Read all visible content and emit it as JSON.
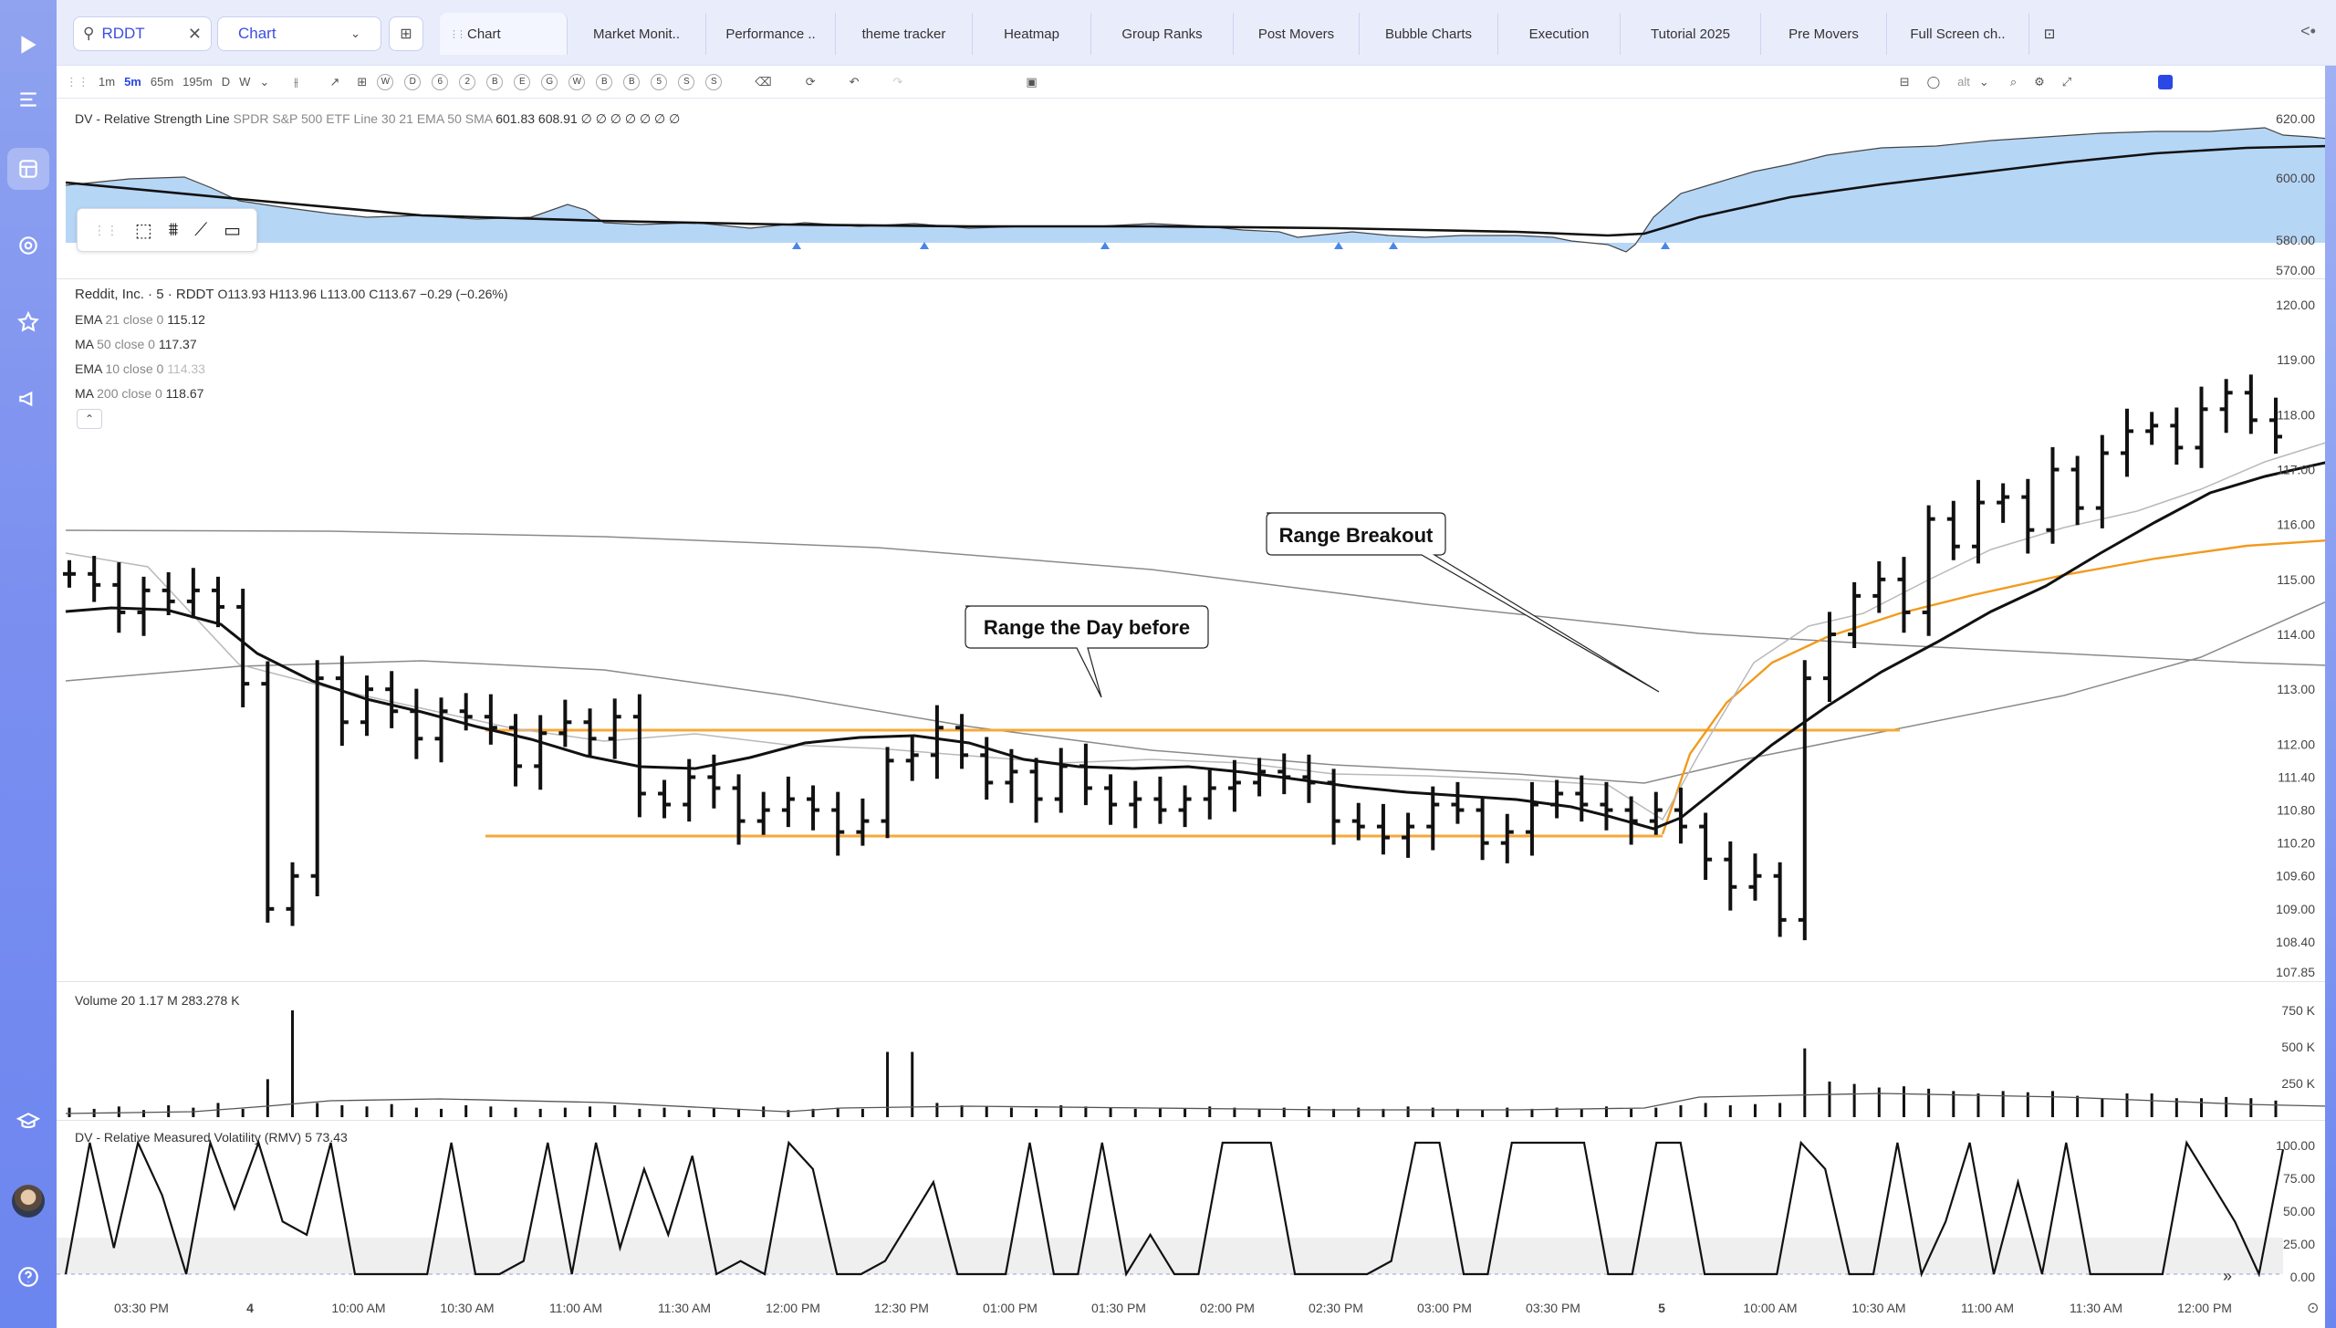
{
  "topbar": {
    "symbol": "RDDT",
    "chart_type": "Chart",
    "tabs": [
      "Chart",
      "Market Monit..",
      "Performance ..",
      "theme tracker",
      "Heatmap",
      "Group Ranks",
      "Post Movers",
      "Bubble Charts",
      "Execution",
      "Tutorial 2025",
      "Pre Movers",
      "Full Screen ch.."
    ]
  },
  "toolbar": {
    "timeframes": [
      "1m",
      "5m",
      "65m",
      "195m",
      "D",
      "W"
    ],
    "active_timeframe": "5m",
    "period_buttons": [
      "W",
      "D",
      "6",
      "2",
      "B",
      "E",
      "G",
      "W",
      "B",
      "B",
      "5",
      "S",
      "S"
    ],
    "alt_label": "alt"
  },
  "rs_pane": {
    "legend_name": "DV - Relative Strength Line",
    "legend_params": "SPDR S&P 500 ETF Line 30 21 EMA 50 SMA",
    "legend_values": "601.83  608.91  ∅ ∅ ∅ ∅ ∅ ∅ ∅",
    "y_ticks": [
      "620.00",
      "600.00",
      "580.00",
      "570.00"
    ]
  },
  "price_pane": {
    "title": "Reddit, Inc. · 5 · RDDT",
    "ohlc": "O113.93  H113.96  L113.00  C113.67  −0.29 (−0.26%)",
    "indicators": [
      {
        "name": "EMA",
        "params": "21 close 0",
        "value": "115.12"
      },
      {
        "name": "MA",
        "params": "50 close 0",
        "value": "117.37"
      },
      {
        "name": "EMA",
        "params": "10 close 0",
        "value": "114.33"
      },
      {
        "name": "MA",
        "params": "200 close 0",
        "value": "118.67"
      }
    ],
    "y_ticks": [
      "120.00",
      "119.00",
      "118.00",
      "117.00",
      "116.00",
      "115.00",
      "114.00",
      "113.00",
      "112.00",
      "111.40",
      "110.80",
      "110.20",
      "109.60",
      "109.00",
      "108.40",
      "107.85"
    ],
    "annotations": [
      "Range the Day before",
      "Range Breakout"
    ],
    "range_lines": [
      {
        "price": 111.95,
        "color": "#f7a83a"
      },
      {
        "price": 110.1,
        "color": "#f7a83a"
      }
    ]
  },
  "volume_pane": {
    "legend": "Volume 20  1.17 M  283.278 K",
    "y_ticks": [
      "750 K",
      "500 K",
      "250 K"
    ]
  },
  "rmv_pane": {
    "legend": "DV - Relative Measured Volatility (RMV) 5  73.43",
    "y_ticks": [
      "100.00",
      "75.00",
      "50.00",
      "25.00",
      "0.00"
    ]
  },
  "x_axis": [
    "03:30 PM",
    "4",
    "10:00 AM",
    "10:30 AM",
    "11:00 AM",
    "11:30 AM",
    "12:00 PM",
    "12:30 PM",
    "01:00 PM",
    "01:30 PM",
    "02:00 PM",
    "02:30 PM",
    "03:00 PM",
    "03:30 PM",
    "5",
    "10:00 AM",
    "10:30 AM",
    "11:00 AM",
    "11:30 AM",
    "12:00 PM"
  ],
  "colors": {
    "accent": "#2a48e6",
    "sidebar": "#7b8ff0",
    "range_line": "#f7a83a",
    "ema21": "#f29a1e",
    "rs_fill": "#a9cff5"
  },
  "chart_data": {
    "type": "candlestick",
    "symbol": "RDDT",
    "interval": "5m",
    "price_path_close": [
      115.1,
      114.9,
      114.4,
      114.8,
      114.6,
      114.8,
      114.5,
      113.1,
      109.0,
      109.6,
      113.2,
      112.4,
      113.0,
      112.6,
      112.1,
      112.6,
      112.5,
      112.3,
      111.6,
      112.2,
      112.4,
      112.1,
      112.5,
      111.1,
      110.9,
      111.4,
      111.2,
      110.6,
      110.8,
      111.0,
      110.8,
      110.4,
      110.6,
      111.7,
      111.8,
      112.3,
      111.8,
      111.3,
      111.5,
      111.0,
      111.6,
      111.2,
      110.9,
      111.0,
      110.8,
      111.0,
      111.2,
      111.3,
      111.5,
      111.4,
      111.3,
      110.6,
      110.5,
      110.3,
      110.5,
      110.9,
      110.8,
      110.2,
      110.4,
      110.9,
      111.1,
      110.9,
      110.8,
      110.6,
      110.8,
      110.5,
      109.9,
      109.4,
      109.6,
      108.8,
      113.2,
      114.0,
      114.7,
      115.0,
      114.4,
      116.1,
      115.6,
      116.4,
      116.5,
      115.9,
      117.0,
      116.3,
      117.3,
      117.7,
      117.8,
      117.4,
      118.1,
      118.4,
      117.9,
      117.6
    ],
    "key_levels": {
      "prior_day_range_high": 111.95,
      "prior_day_range_low": 110.1
    }
  }
}
